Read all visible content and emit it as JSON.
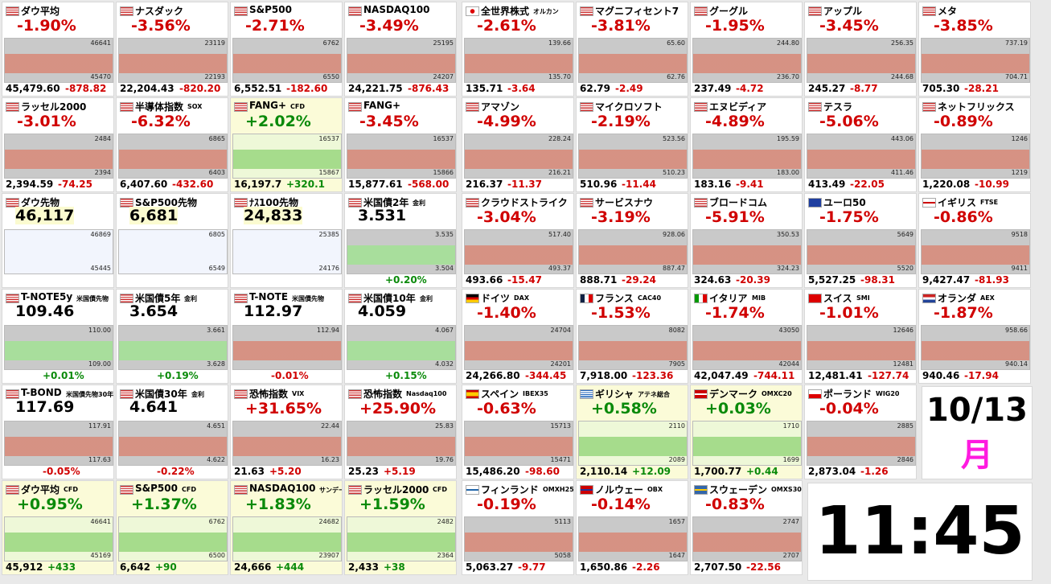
{
  "rows": [
    {
      "left": [
        {
          "flag": "us",
          "name": "ダウ平均",
          "change": "-1.90%",
          "color": "#d00000",
          "price": "45,479.60",
          "diff": "-878.82",
          "hi": "46641",
          "lo": "45470"
        },
        {
          "flag": "us",
          "name": "ナスダック",
          "change": "-3.56%",
          "color": "#d00000",
          "price": "22,204.43",
          "diff": "-820.20",
          "hi": "23119",
          "lo": "22193"
        },
        {
          "flag": "us",
          "name": "S&P500",
          "change": "-2.71%",
          "color": "#d00000",
          "price": "6,552.51",
          "diff": "-182.60",
          "hi": "6762",
          "lo": "6550"
        },
        {
          "flag": "us",
          "name": "NASDAQ100",
          "change": "-3.49%",
          "color": "#d00000",
          "price": "24,221.75",
          "diff": "-876.43",
          "hi": "25195",
          "lo": "24207"
        }
      ],
      "right": [
        {
          "flag": "jp",
          "name": "全世界株式",
          "sub": "オルカン",
          "change": "-2.61%",
          "color": "#d00000",
          "price": "135.71",
          "diff": "-3.64",
          "hi": "139.66",
          "lo": "135.70"
        },
        {
          "flag": "us",
          "name": "マグニフィセント7",
          "change": "-3.81%",
          "color": "#d00000",
          "price": "62.79",
          "diff": "-2.49",
          "hi": "65.60",
          "lo": "62.76"
        },
        {
          "flag": "us",
          "name": "グーグル",
          "change": "-1.95%",
          "color": "#d00000",
          "price": "237.49",
          "diff": "-4.72",
          "hi": "244.80",
          "lo": "236.70"
        },
        {
          "flag": "us",
          "name": "アップル",
          "change": "-3.45%",
          "color": "#d00000",
          "price": "245.27",
          "diff": "-8.77",
          "hi": "256.35",
          "lo": "244.68"
        },
        {
          "flag": "us",
          "name": "メタ",
          "change": "-3.85%",
          "color": "#d00000",
          "price": "705.30",
          "diff": "-28.21",
          "hi": "737.19",
          "lo": "704.71"
        }
      ]
    },
    {
      "left": [
        {
          "flag": "us",
          "name": "ラッセル2000",
          "change": "-3.01%",
          "color": "#d00000",
          "price": "2,394.59",
          "diff": "-74.25",
          "hi": "2484",
          "lo": "2394"
        },
        {
          "flag": "us",
          "name": "半導体指数",
          "sub": "SOX",
          "change": "-6.32%",
          "color": "#d00000",
          "price": "6,407.60",
          "diff": "-432.60",
          "hi": "6865",
          "lo": "6403"
        },
        {
          "flag": "us",
          "name": "FANG+",
          "sub": "CFD",
          "change": "+2.02%",
          "color": "#0a8a0a",
          "price": "16,197.7",
          "diff": "+320.1",
          "hi": "16537",
          "lo": "15867"
        },
        {
          "flag": "us",
          "name": "FANG+",
          "change": "-3.45%",
          "color": "#d00000",
          "price": "15,877.61",
          "diff": "-568.00",
          "hi": "16537",
          "lo": "15866"
        }
      ],
      "right": [
        {
          "flag": "us",
          "name": "アマゾン",
          "change": "-4.99%",
          "color": "#d00000",
          "price": "216.37",
          "diff": "-11.37",
          "hi": "228.24",
          "lo": "216.21"
        },
        {
          "flag": "us",
          "name": "マイクロソフト",
          "change": "-2.19%",
          "color": "#d00000",
          "price": "510.96",
          "diff": "-11.44",
          "hi": "523.56",
          "lo": "510.23"
        },
        {
          "flag": "us",
          "name": "エヌビディア",
          "change": "-4.89%",
          "color": "#d00000",
          "price": "183.16",
          "diff": "-9.41",
          "hi": "195.59",
          "lo": "183.00"
        },
        {
          "flag": "us",
          "name": "テスラ",
          "change": "-5.06%",
          "color": "#d00000",
          "price": "413.49",
          "diff": "-22.05",
          "hi": "443.06",
          "lo": "411.46"
        },
        {
          "flag": "us",
          "name": "ネットフリックス",
          "change": "-0.89%",
          "color": "#d00000",
          "price": "1,220.08",
          "diff": "-10.99",
          "hi": "1246",
          "lo": "1219"
        }
      ]
    },
    {
      "left": [
        {
          "flag": "us",
          "name": "ダウ先物",
          "price": "46,117",
          "hi": "46869",
          "lo": "45445"
        },
        {
          "flag": "us",
          "name": "S&P500先物",
          "price": "6,681",
          "hi": "6805",
          "lo": "6549"
        },
        {
          "flag": "us",
          "name": "ﾅｽ100先物",
          "price": "24,833",
          "hi": "25385",
          "lo": "24176"
        },
        {
          "flag": "us",
          "name": "米国債2年",
          "sub": "金利",
          "price": "3.531",
          "change": "+0.20%",
          "color": "#0a8a0a",
          "hi": "3.535",
          "lo": "3.504"
        }
      ],
      "right": [
        {
          "flag": "us",
          "name": "クラウドストライク",
          "change": "-3.04%",
          "color": "#d00000",
          "price": "493.66",
          "diff": "-15.47",
          "hi": "517.40",
          "lo": "493.37"
        },
        {
          "flag": "us",
          "name": "サービスナウ",
          "change": "-3.19%",
          "color": "#d00000",
          "price": "888.71",
          "diff": "-29.24",
          "hi": "928.06",
          "lo": "887.47"
        },
        {
          "flag": "us",
          "name": "ブロードコム",
          "change": "-5.91%",
          "color": "#d00000",
          "price": "324.63",
          "diff": "-20.39",
          "hi": "350.53",
          "lo": "324.23"
        },
        {
          "flag": "eu",
          "name": "ユーロ50",
          "change": "-1.75%",
          "color": "#d00000",
          "price": "5,527.25",
          "diff": "-98.31",
          "hi": "5649",
          "lo": "5520"
        },
        {
          "flag": "uk",
          "name": "イギリス",
          "sub": "FTSE",
          "change": "-0.86%",
          "color": "#d00000",
          "price": "9,427.47",
          "diff": "-81.93",
          "hi": "9518",
          "lo": "9411"
        }
      ]
    },
    {
      "left": [
        {
          "flag": "us",
          "name": "T-NOTE5y",
          "sub": "米国債先物",
          "price": "109.46",
          "change": "+0.01%",
          "color": "#0a8a0a",
          "hi": "110.00",
          "lo": "109.00"
        },
        {
          "flag": "us",
          "name": "米国債5年",
          "sub": "金利",
          "price": "3.654",
          "change": "+0.19%",
          "color": "#0a8a0a",
          "hi": "3.661",
          "lo": "3.628"
        },
        {
          "flag": "us",
          "name": "T-NOTE",
          "sub": "米国債先物",
          "price": "112.97",
          "change": "-0.01%",
          "color": "#d00000",
          "hi": "112.94"
        },
        {
          "flag": "us",
          "name": "米国債10年",
          "sub": "金利",
          "price": "4.059",
          "change": "+0.15%",
          "color": "#0a8a0a",
          "hi": "4.067",
          "lo": "4.032"
        }
      ],
      "right": [
        {
          "flag": "de",
          "name": "ドイツ",
          "sub": "DAX",
          "change": "-1.40%",
          "color": "#d00000",
          "price": "24,266.80",
          "diff": "-344.45",
          "hi": "24704",
          "lo": "24201"
        },
        {
          "flag": "fr",
          "name": "フランス",
          "sub": "CAC40",
          "change": "-1.53%",
          "color": "#d00000",
          "price": "7,918.00",
          "diff": "-123.36",
          "hi": "8082",
          "lo": "7905"
        },
        {
          "flag": "it",
          "name": "イタリア",
          "sub": "MIB",
          "change": "-1.74%",
          "color": "#d00000",
          "price": "42,047.49",
          "diff": "-744.11",
          "hi": "43050",
          "lo": "42044"
        },
        {
          "flag": "ch",
          "name": "スイス",
          "sub": "SMI",
          "change": "-1.01%",
          "color": "#d00000",
          "price": "12,481.41",
          "diff": "-127.74",
          "hi": "12646",
          "lo": "12481"
        },
        {
          "flag": "nl",
          "name": "オランダ",
          "sub": "AEX",
          "change": "-1.87%",
          "color": "#d00000",
          "price": "940.46",
          "diff": "-17.94",
          "hi": "958.66",
          "lo": "940.14"
        }
      ]
    },
    {
      "left": [
        {
          "flag": "us",
          "name": "T-BOND",
          "sub": "米国債先物30年",
          "price": "117.69",
          "change": "-0.05%",
          "color": "#d00000",
          "hi": "117.91",
          "lo": "117.63"
        },
        {
          "flag": "us",
          "name": "米国債30年",
          "sub": "金利",
          "price": "4.641",
          "change": "-0.22%",
          "color": "#d00000",
          "hi": "4.651",
          "lo": "4.622"
        },
        {
          "flag": "us",
          "name": "恐怖指数",
          "sub": "VIX",
          "change": "+31.65%",
          "color": "#d00000",
          "price": "21.63",
          "diff": "+5.20",
          "hi": "22.44",
          "lo": "16.23"
        },
        {
          "flag": "us",
          "name": "恐怖指数",
          "sub": "Nasdaq100",
          "change": "+25.90%",
          "color": "#d00000",
          "price": "25.23",
          "diff": "+5.19",
          "hi": "25.83",
          "lo": "19.76"
        }
      ],
      "right": [
        {
          "flag": "es",
          "name": "スペイン",
          "sub": "IBEX35",
          "change": "-0.63%",
          "color": "#d00000",
          "price": "15,486.20",
          "diff": "-98.60",
          "hi": "15713",
          "lo": "15471"
        },
        {
          "flag": "gr",
          "name": "ギリシャ",
          "sub": "アテネ総合",
          "change": "+0.58%",
          "color": "#0a8a0a",
          "price": "2,110.14",
          "diff": "+12.09",
          "hi": "2110",
          "lo": "2089"
        },
        {
          "flag": "dk",
          "name": "デンマーク",
          "sub": "OMXC20",
          "change": "+0.03%",
          "color": "#0a8a0a",
          "price": "1,700.77",
          "diff": "+0.44",
          "hi": "1710",
          "lo": "1699"
        },
        {
          "flag": "pl",
          "name": "ポーランド",
          "sub": "WIG20",
          "change": "-0.04%",
          "color": "#d00000",
          "price": "2,873.04",
          "diff": "-1.26",
          "hi": "2885",
          "lo": "2846"
        }
      ]
    },
    {
      "left": [
        {
          "flag": "us",
          "name": "ダウ平均",
          "sub": "CFD",
          "change": "+0.95%",
          "color": "#0a8a0a",
          "price": "45,912",
          "diff": "+433",
          "hi": "46641",
          "lo": "45169"
        },
        {
          "flag": "us",
          "name": "S&P500",
          "sub": "CFD",
          "change": "+1.37%",
          "color": "#0a8a0a",
          "price": "6,642",
          "diff": "+90",
          "hi": "6762",
          "lo": "6500"
        },
        {
          "flag": "us",
          "name": "NASDAQ100",
          "sub": "サンデー",
          "change": "+1.83%",
          "color": "#0a8a0a",
          "price": "24,666",
          "diff": "+444",
          "hi": "24682",
          "lo": "23907"
        },
        {
          "flag": "us",
          "name": "ラッセル2000",
          "sub": "CFD",
          "change": "+1.59%",
          "color": "#0a8a0a",
          "price": "2,433",
          "diff": "+38",
          "hi": "2482",
          "lo": "2364"
        }
      ],
      "right": [
        {
          "flag": "fi",
          "name": "フィンランド",
          "sub": "OMXH25",
          "change": "-0.19%",
          "color": "#d00000",
          "price": "5,063.27",
          "diff": "-9.77",
          "hi": "5113",
          "lo": "5058"
        },
        {
          "flag": "no",
          "name": "ノルウェー",
          "sub": "OBX",
          "change": "-0.14%",
          "color": "#d00000",
          "price": "1,650.86",
          "diff": "-2.26",
          "hi": "1657",
          "lo": "1647"
        },
        {
          "flag": "se",
          "name": "スウェーデン",
          "sub": "OMXS30",
          "change": "-0.83%",
          "color": "#d00000",
          "price": "2,707.50",
          "diff": "-22.56",
          "hi": "2747",
          "lo": "2707"
        }
      ]
    }
  ],
  "date": "10/13",
  "weekday": "月",
  "time": "11:45"
}
